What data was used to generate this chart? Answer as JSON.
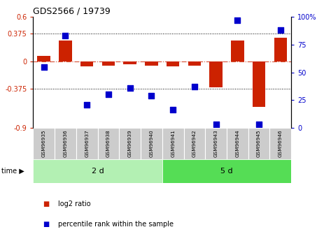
{
  "title": "GDS2566 / 19739",
  "samples": [
    "GSM96935",
    "GSM96936",
    "GSM96937",
    "GSM96938",
    "GSM96939",
    "GSM96940",
    "GSM96941",
    "GSM96942",
    "GSM96943",
    "GSM96944",
    "GSM96945",
    "GSM96946"
  ],
  "log2_ratio": [
    0.07,
    0.28,
    -0.07,
    -0.06,
    -0.04,
    -0.06,
    -0.07,
    -0.06,
    -0.35,
    0.28,
    -0.62,
    0.32
  ],
  "percentile_rank": [
    55,
    83,
    21,
    30,
    36,
    29,
    16,
    37,
    3,
    97,
    3,
    88
  ],
  "group1_label": "2 d",
  "group2_label": "5 d",
  "group1_count": 6,
  "group2_count": 6,
  "ylim_left": [
    -0.9,
    0.6
  ],
  "ylim_right": [
    0,
    100
  ],
  "yticks_left": [
    -0.9,
    -0.375,
    0,
    0.375,
    0.6
  ],
  "yticks_right": [
    0,
    25,
    50,
    75,
    100
  ],
  "hlines": [
    0.375,
    -0.375
  ],
  "bar_color": "#cc2200",
  "dot_color": "#0000cc",
  "bg_color": "#ffffff",
  "plot_bg": "#ffffff",
  "legend_bar_label": "log2 ratio",
  "legend_dot_label": "percentile rank within the sample",
  "group1_bg": "#b3f0b3",
  "group2_bg": "#55dd55",
  "sample_box_bg": "#cccccc",
  "time_label": "time"
}
